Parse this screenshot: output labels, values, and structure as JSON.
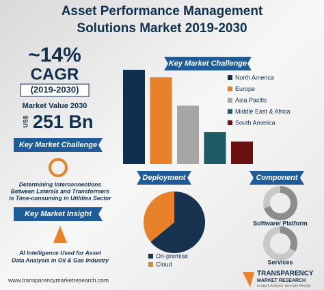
{
  "header": {
    "title_lines": [
      "Asset Performance Management",
      "Solutions Market 2019-2030"
    ]
  },
  "stats": {
    "cagr": "~14%",
    "cagr_label": "CAGR",
    "period": "(2019-2030)",
    "market_value_label": "Market Value 2030",
    "currency": "US$",
    "market_value": "251 Bn"
  },
  "left_panel": {
    "challenge_heading": "Key Market Challenge",
    "challenge_text": [
      "Determining Interconnections",
      "Between Laterals and Transformers",
      "is Time-consuming in Utilities Sector"
    ],
    "insight_heading": "Key Market Insight",
    "insight_text": [
      "AI Intelligence Used for Asset",
      "Data Analysis in Oil & Gas Industry"
    ]
  },
  "chart_data": [
    {
      "type": "bar",
      "title": "Key Market Challenge",
      "categories": [
        "North America",
        "Europe",
        "Asia Pacific",
        "Middle East & Africa",
        "South America"
      ],
      "values": [
        100,
        92,
        62,
        34,
        24
      ],
      "colors": [
        "#0f2f4f",
        "#e8822a",
        "#a6a6a6",
        "#1d5a63",
        "#6b1010"
      ]
    },
    {
      "type": "pie",
      "title": "Deployment",
      "categories": [
        "On-premise",
        "Cloud"
      ],
      "values": [
        64,
        36
      ],
      "colors": [
        "#16324f",
        "#e8822a"
      ]
    }
  ],
  "component": {
    "heading": "Component",
    "items": [
      "Software/ Platform",
      "Services"
    ]
  },
  "footer": {
    "url": "www.transparencymarketresearch.com",
    "logo_top": "TRANSPARENCY",
    "logo_bottom": "MARKET RESEARCH",
    "tagline": "In-depth Analysis. Accurate Results"
  }
}
